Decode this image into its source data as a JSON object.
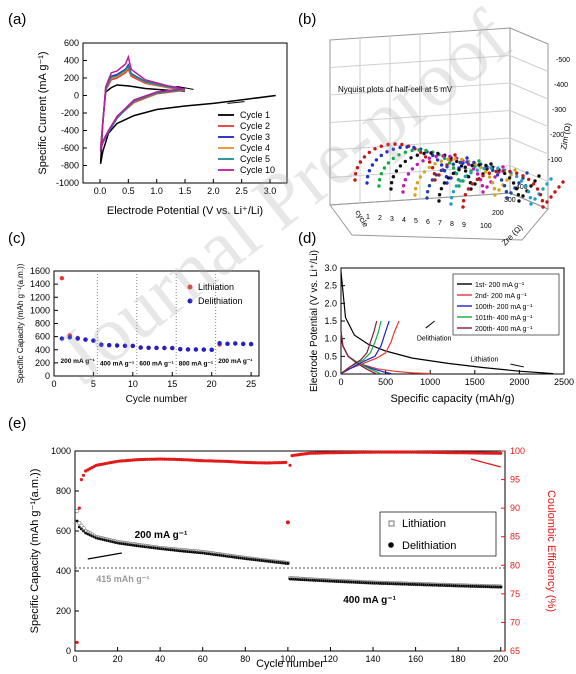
{
  "watermark": "Journal Pre-proof",
  "chart_data": [
    {
      "panel": "(a)",
      "type": "line",
      "xlabel": "Electrode Potential (V vs. Li⁺/Li)",
      "ylabel": "Specific Current (mA g⁻¹)",
      "xlim": [
        -0.3,
        3.3
      ],
      "ylim": [
        -1000,
        600
      ],
      "xticks": [
        0.0,
        0.5,
        1.0,
        1.5,
        2.0,
        2.5,
        3.0
      ],
      "yticks": [
        -1000,
        -800,
        -600,
        -400,
        -200,
        0,
        200,
        400,
        600
      ],
      "legend_position": "bottom-right",
      "series": [
        {
          "name": "Cycle 1",
          "color": "#000000",
          "x": [
            3.1,
            2.5,
            2.0,
            1.5,
            1.0,
            0.6,
            0.3,
            0.15,
            0.05,
            0.01,
            0.05,
            0.1,
            0.2,
            0.3,
            0.5,
            0.8,
            1.2,
            1.5
          ],
          "y": [
            0,
            -50,
            -90,
            -120,
            -160,
            -230,
            -320,
            -430,
            -640,
            -780,
            -300,
            40,
            90,
            120,
            110,
            80,
            60,
            50
          ]
        },
        {
          "name": "Cycle 2",
          "color": "#e53935",
          "x": [
            1.5,
            1.0,
            0.6,
            0.3,
            0.15,
            0.05,
            0.01,
            0.05,
            0.1,
            0.2,
            0.3,
            0.45,
            0.5,
            0.55,
            0.8,
            1.2,
            1.5
          ],
          "y": [
            60,
            20,
            -80,
            -250,
            -400,
            -520,
            -600,
            -300,
            60,
            180,
            200,
            260,
            300,
            220,
            140,
            90,
            60
          ]
        },
        {
          "name": "Cycle 3",
          "color": "#1e22c8",
          "x": [
            1.5,
            1.0,
            0.6,
            0.3,
            0.15,
            0.05,
            0.01,
            0.05,
            0.1,
            0.2,
            0.3,
            0.45,
            0.5,
            0.55,
            0.8,
            1.2,
            1.5
          ],
          "y": [
            70,
            30,
            -60,
            -260,
            -420,
            -540,
            -620,
            -320,
            80,
            220,
            240,
            300,
            350,
            250,
            160,
            100,
            70
          ]
        },
        {
          "name": "Cycle 4",
          "color": "#f28c28",
          "x": [
            1.5,
            1.0,
            0.6,
            0.3,
            0.15,
            0.05,
            0.01,
            0.05,
            0.1,
            0.2,
            0.3,
            0.45,
            0.5,
            0.55,
            0.8,
            1.2,
            1.5
          ],
          "y": [
            65,
            25,
            -70,
            -255,
            -410,
            -530,
            -610,
            -310,
            70,
            200,
            215,
            280,
            320,
            235,
            150,
            95,
            65
          ]
        },
        {
          "name": "Cycle 5",
          "color": "#1a8a8a",
          "x": [
            1.5,
            1.0,
            0.6,
            0.3,
            0.15,
            0.05,
            0.01,
            0.05,
            0.1,
            0.2,
            0.3,
            0.45,
            0.5,
            0.55,
            0.8,
            1.2,
            1.5
          ],
          "y": [
            68,
            28,
            -65,
            -258,
            -415,
            -535,
            -615,
            -315,
            75,
            210,
            228,
            290,
            335,
            242,
            155,
            98,
            68
          ]
        },
        {
          "name": "Cycle 10",
          "color": "#c2189a",
          "x": [
            1.5,
            1.0,
            0.6,
            0.3,
            0.15,
            0.05,
            0.01,
            0.05,
            0.1,
            0.2,
            0.3,
            0.45,
            0.5,
            0.55,
            0.8,
            1.2,
            1.5
          ],
          "y": [
            80,
            40,
            -50,
            -240,
            -400,
            -520,
            -640,
            -330,
            100,
            260,
            280,
            360,
            440,
            300,
            180,
            110,
            80
          ]
        }
      ]
    },
    {
      "panel": "(b)",
      "type": "scatter",
      "title": "Nyquist plots of half-cell at 5 mV",
      "xlabel": "cycle",
      "ylabel": "Zre (Ω)",
      "zlabel": "Zim (Ω)",
      "zticks": [
        -500,
        -400,
        -300,
        -200,
        -100
      ],
      "yticks": [
        100,
        200,
        300,
        400
      ],
      "colors": [
        "#cc1111",
        "#1f2fd0",
        "#11aa44",
        "#111111",
        "#c218b0",
        "#d4a51a",
        "#2244aa",
        "#111111",
        "#20a0c0",
        "#c21818"
      ]
    },
    {
      "panel": "(c)",
      "type": "scatter",
      "xlabel": "Cycle number",
      "ylabel": "Specific Capacity (mAh g⁻¹(a.m.))",
      "xlim": [
        0,
        26
      ],
      "ylim": [
        0,
        1600
      ],
      "xticks": [
        0,
        5,
        10,
        15,
        20,
        25
      ],
      "yticks": [
        0,
        200,
        400,
        600,
        800,
        1000,
        1200,
        1400,
        1600
      ],
      "legend_position": "top-right",
      "rate_labels": [
        {
          "text": "200 mA g⁻¹",
          "x": 3,
          "y": 200
        },
        {
          "text": "400 mA g⁻¹",
          "x": 8,
          "y": 160
        },
        {
          "text": "600 mA g⁻¹",
          "x": 13,
          "y": 160
        },
        {
          "text": "800 mA g⁻¹",
          "x": 18,
          "y": 160
        },
        {
          "text": "200 mA g⁻¹",
          "x": 23,
          "y": 200
        }
      ],
      "dividers": [
        5.5,
        10.5,
        15.5,
        20.5
      ],
      "series": [
        {
          "name": "Lithiation",
          "color": "#e53935",
          "x": [
            1,
            2,
            3,
            4,
            5,
            6,
            7,
            8,
            9,
            10,
            11,
            12,
            13,
            14,
            15,
            16,
            17,
            18,
            19,
            20,
            21,
            22,
            23,
            24,
            25
          ],
          "y": [
            1490,
            620,
            580,
            555,
            540,
            480,
            470,
            465,
            460,
            460,
            435,
            430,
            430,
            428,
            425,
            410,
            405,
            405,
            402,
            400,
            480,
            490,
            495,
            490,
            488
          ]
        },
        {
          "name": "Delithiation",
          "color": "#1e22c8",
          "x": [
            1,
            2,
            3,
            4,
            5,
            6,
            7,
            8,
            9,
            10,
            11,
            12,
            13,
            14,
            15,
            16,
            17,
            18,
            19,
            20,
            21,
            22,
            23,
            24,
            25
          ],
          "y": [
            570,
            590,
            570,
            555,
            540,
            475,
            470,
            465,
            460,
            458,
            432,
            430,
            428,
            427,
            425,
            408,
            405,
            404,
            402,
            400,
            500,
            490,
            495,
            488,
            485
          ]
        }
      ]
    },
    {
      "panel": "(d)",
      "type": "line",
      "xlabel": "Specific capacity (mAh/g)",
      "ylabel": "Electrode Potential (V vs. Li⁺/Li)",
      "xlim": [
        0,
        2500
      ],
      "ylim": [
        0,
        3.0
      ],
      "xticks": [
        0,
        500,
        1000,
        1500,
        2000,
        2500
      ],
      "yticks": [
        0.0,
        0.5,
        1.0,
        1.5,
        2.0,
        2.5,
        3.0
      ],
      "legend_position": "top-right",
      "annotations": [
        "Delithiation",
        "Lithiation"
      ],
      "series": [
        {
          "name": "1st- 200 mA g⁻¹",
          "color": "#000000",
          "x": [
            0,
            50,
            150,
            300,
            500,
            800,
            1200,
            1600,
            2000,
            2380
          ],
          "y": [
            2.9,
            1.6,
            1.1,
            0.85,
            0.65,
            0.45,
            0.3,
            0.18,
            0.08,
            0.01
          ]
        },
        {
          "name": "2nd- 200 mA g⁻¹",
          "color": "#e53935",
          "x": [
            0,
            20,
            80,
            200,
            400,
            600,
            800,
            1000
          ],
          "y": [
            1.2,
            0.8,
            0.5,
            0.3,
            0.15,
            0.08,
            0.03,
            0.01
          ]
        },
        {
          "name": "100th- 200 mA g⁻¹",
          "color": "#1e22c8",
          "x": [
            0,
            20,
            80,
            200,
            350,
            480,
            560
          ],
          "y": [
            1.2,
            0.8,
            0.5,
            0.3,
            0.15,
            0.06,
            0.01
          ]
        },
        {
          "name": "101th- 400 mA g⁻¹",
          "color": "#11aa44",
          "x": [
            0,
            20,
            80,
            200,
            320,
            400,
            440
          ],
          "y": [
            1.2,
            0.8,
            0.5,
            0.3,
            0.15,
            0.06,
            0.01
          ]
        },
        {
          "name": "200th- 400 mA g⁻¹",
          "color": "#8b1a3a",
          "x": [
            0,
            20,
            80,
            180,
            280,
            350,
            390
          ],
          "y": [
            1.2,
            0.8,
            0.5,
            0.3,
            0.15,
            0.06,
            0.01
          ]
        },
        {
          "name": "",
          "color": "#e53935",
          "x": [
            0,
            100,
            250,
            400,
            500,
            560,
            600,
            650
          ],
          "y": [
            0.01,
            0.15,
            0.3,
            0.45,
            0.6,
            0.9,
            1.2,
            1.5
          ]
        },
        {
          "name": "",
          "color": "#1e22c8",
          "x": [
            0,
            100,
            250,
            380,
            450,
            500,
            540
          ],
          "y": [
            0.01,
            0.15,
            0.35,
            0.5,
            0.8,
            1.2,
            1.5
          ]
        },
        {
          "name": "",
          "color": "#11aa44",
          "x": [
            0,
            100,
            250,
            330,
            380,
            420,
            450
          ],
          "y": [
            0.01,
            0.2,
            0.4,
            0.6,
            0.9,
            1.2,
            1.5
          ]
        },
        {
          "name": "",
          "color": "#8b1a3a",
          "x": [
            0,
            100,
            220,
            290,
            330,
            370,
            400
          ],
          "y": [
            0.01,
            0.2,
            0.4,
            0.6,
            0.9,
            1.2,
            1.5
          ]
        }
      ]
    },
    {
      "panel": "(e)",
      "type": "scatter",
      "xlabel": "Cycle number",
      "ylabel": "Specific Capacity (mAh g⁻¹(a.m.))",
      "y2label": "Coulombic Efficiency (%)",
      "xlim": [
        0,
        202
      ],
      "ylim": [
        0,
        1000
      ],
      "y2lim": [
        65,
        100
      ],
      "xticks": [
        0,
        20,
        40,
        60,
        80,
        100,
        120,
        140,
        160,
        180,
        200
      ],
      "yticks": [
        0,
        200,
        400,
        600,
        800,
        1000
      ],
      "y2ticks": [
        65,
        70,
        75,
        80,
        85,
        90,
        95,
        100
      ],
      "legend_position": "middle-right",
      "annotations": [
        "200 mA g⁻¹",
        "400 mA g⁻¹",
        "415 mAh g⁻¹"
      ],
      "reference_line": 415,
      "series": [
        {
          "name": "Lithiation",
          "color": "#777777",
          "x": [
            1,
            2,
            5,
            10,
            20,
            30,
            40,
            50,
            60,
            70,
            80,
            90,
            100,
            101,
            110,
            120,
            140,
            160,
            180,
            200
          ],
          "y": [
            700,
            640,
            600,
            570,
            545,
            530,
            515,
            505,
            495,
            480,
            465,
            452,
            440,
            365,
            358,
            352,
            342,
            335,
            328,
            322
          ]
        },
        {
          "name": "Delithiation",
          "color": "#000000",
          "x": [
            1,
            2,
            5,
            10,
            20,
            30,
            40,
            50,
            60,
            70,
            80,
            90,
            100,
            101,
            110,
            120,
            140,
            160,
            180,
            200
          ],
          "y": [
            650,
            620,
            590,
            565,
            540,
            525,
            512,
            500,
            490,
            476,
            462,
            450,
            438,
            360,
            355,
            350,
            340,
            333,
            326,
            320
          ]
        },
        {
          "name": "Coulombic Efficiency",
          "color": "#e31a1c",
          "x": [
            1,
            2,
            3,
            5,
            10,
            20,
            30,
            40,
            50,
            60,
            70,
            80,
            90,
            99,
            100,
            101,
            102,
            110,
            120,
            140,
            160,
            180,
            200
          ],
          "y": [
            66.5,
            90,
            95,
            96.5,
            97.5,
            98.2,
            98.5,
            98.6,
            98.5,
            98.3,
            98.2,
            98.0,
            97.9,
            98.0,
            87.5,
            97.5,
            99.2,
            99.6,
            99.7,
            99.8,
            99.8,
            99.7,
            99.6
          ]
        }
      ]
    }
  ]
}
